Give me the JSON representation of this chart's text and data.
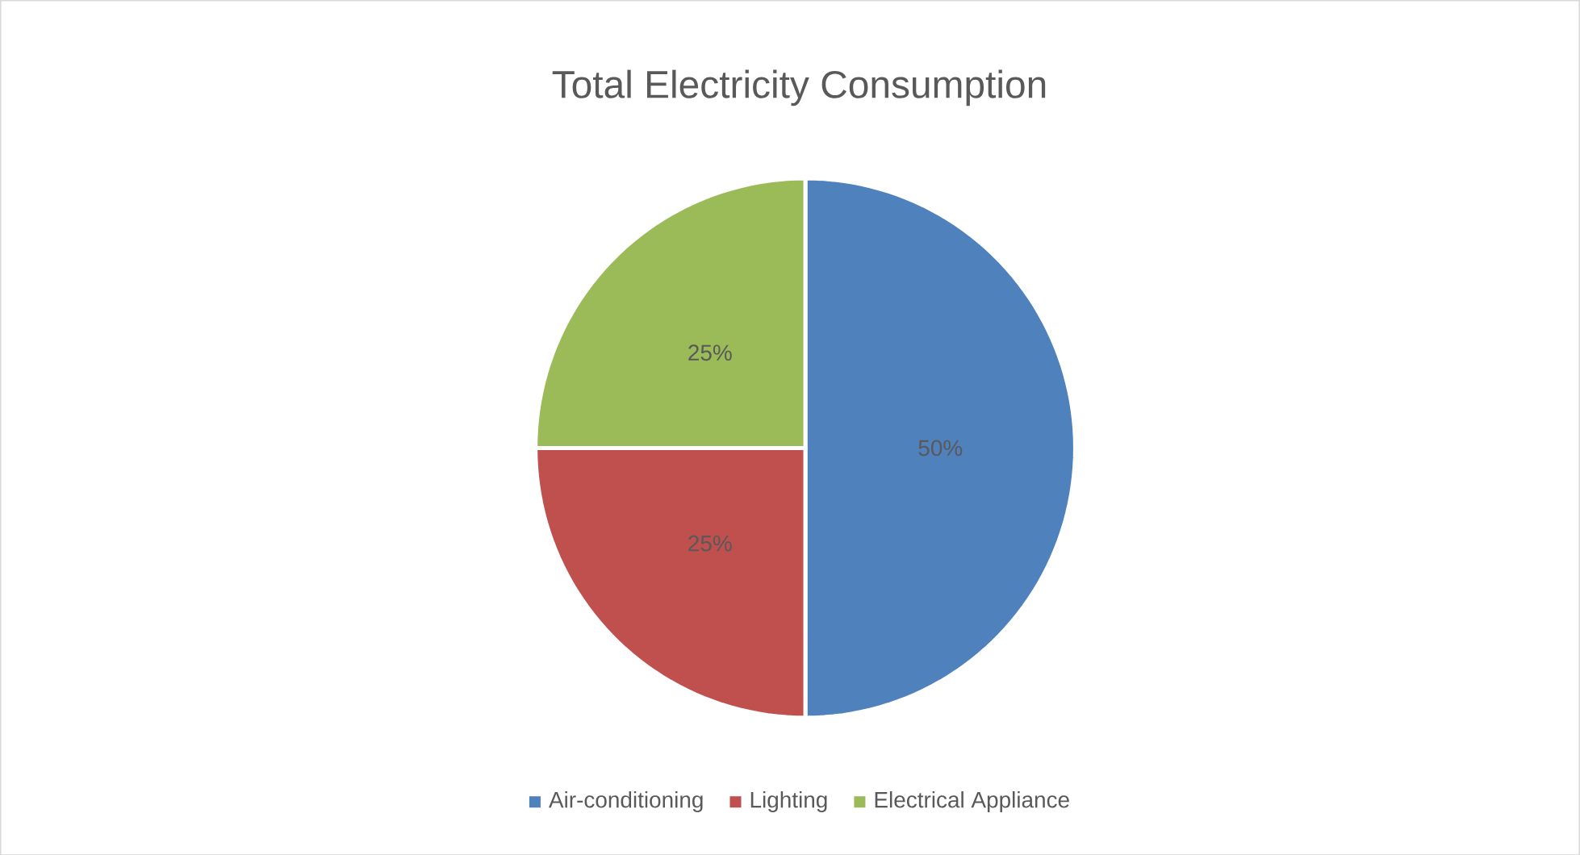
{
  "chart_data": {
    "type": "pie",
    "title": "Total Electricity Consumption",
    "categories": [
      "Air-conditioning",
      "Lighting",
      "Electrical Appliance"
    ],
    "values": [
      50,
      25,
      25
    ],
    "colors": [
      "#4f81bd",
      "#c0504d",
      "#9bbb59"
    ],
    "value_labels": [
      "50%",
      "25%",
      "25%"
    ],
    "legend": "bottom"
  }
}
